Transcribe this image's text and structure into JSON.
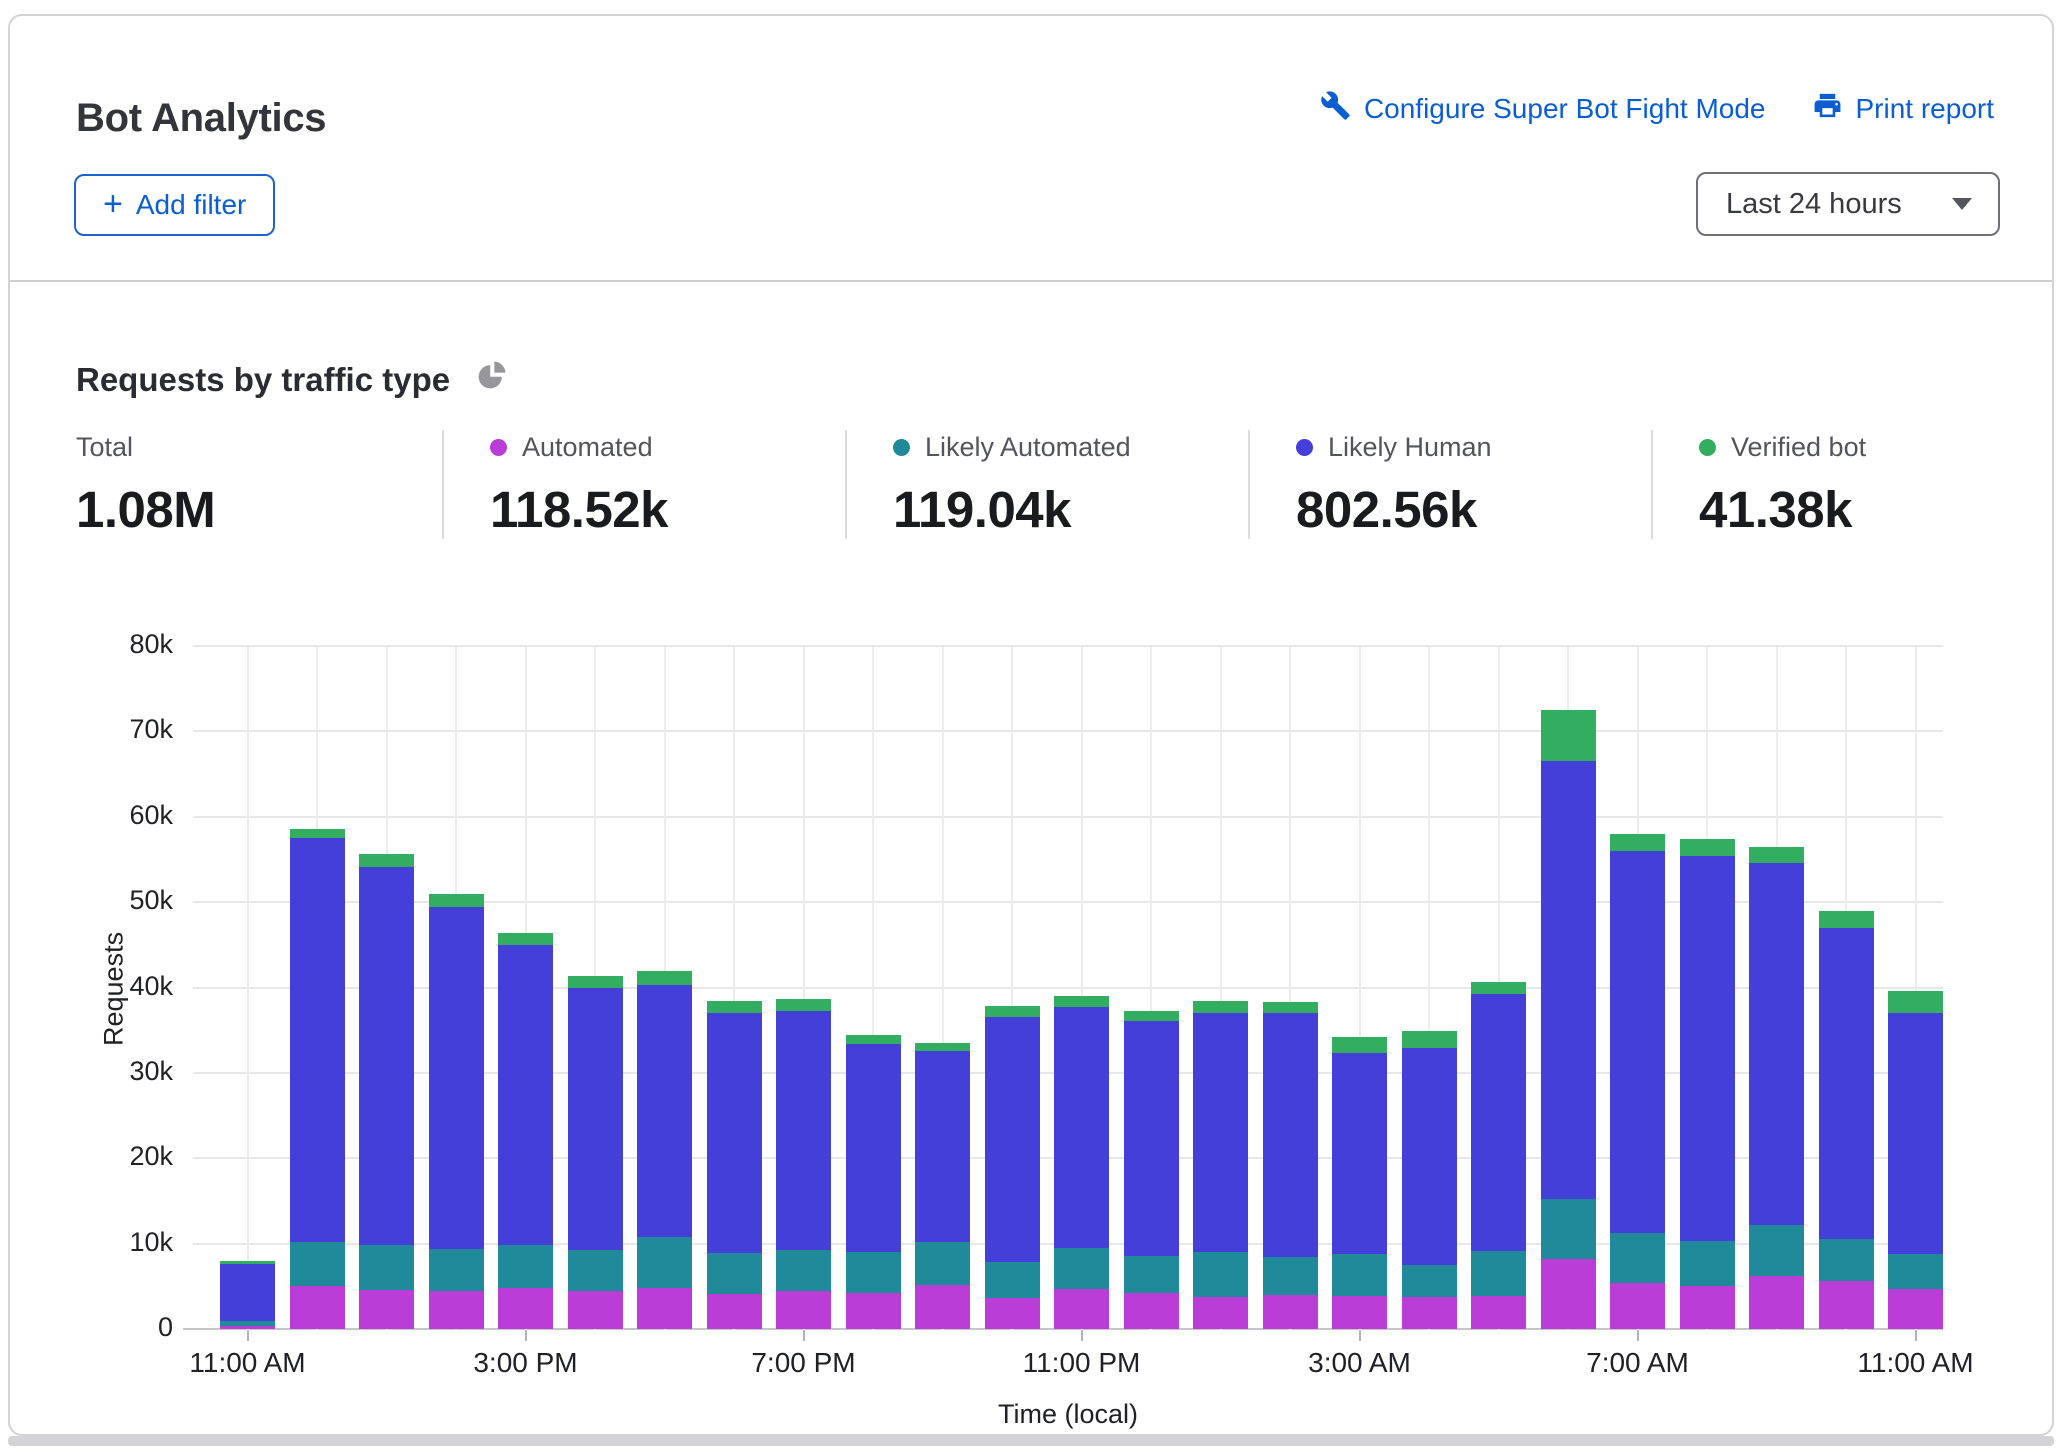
{
  "header": {
    "title": "Bot Analytics",
    "links": [
      {
        "label": "Configure Super Bot Fight Mode",
        "icon": "wrench-icon"
      },
      {
        "label": "Print report",
        "icon": "printer-icon"
      }
    ],
    "add_filter_label": "Add filter",
    "time_range": "Last 24 hours"
  },
  "section": {
    "title": "Requests by traffic type",
    "icon": "pie-chart-icon"
  },
  "stats": [
    {
      "label": "Total",
      "value": "1.08M",
      "color": null
    },
    {
      "label": "Automated",
      "value": "118.52k",
      "color": "#ba3dd8"
    },
    {
      "label": "Likely Automated",
      "value": "119.04k",
      "color": "#20899a"
    },
    {
      "label": "Likely Human",
      "value": "802.56k",
      "color": "#433fd8"
    },
    {
      "label": "Verified bot",
      "value": "41.38k",
      "color": "#33ad5f"
    }
  ],
  "chart_data": {
    "type": "bar",
    "stacked": true,
    "title": "Requests by traffic type",
    "xlabel": "Time (local)",
    "ylabel": "Requests",
    "ylim": [
      0,
      80000
    ],
    "y_tick_labels": [
      "0",
      "10k",
      "20k",
      "30k",
      "40k",
      "50k",
      "60k",
      "70k",
      "80k"
    ],
    "values_unit": "thousands of requests (k)",
    "grid": true,
    "legend_position": "top-stats-row",
    "categories": [
      "11:00 AM",
      "12:00 PM",
      "1:00 PM",
      "2:00 PM",
      "3:00 PM",
      "4:00 PM",
      "5:00 PM",
      "6:00 PM",
      "7:00 PM",
      "8:00 PM",
      "9:00 PM",
      "10:00 PM",
      "11:00 PM",
      "12:00 AM",
      "1:00 AM",
      "2:00 AM",
      "3:00 AM",
      "4:00 AM",
      "5:00 AM",
      "6:00 AM",
      "7:00 AM",
      "8:00 AM",
      "9:00 AM",
      "10:00 AM",
      "11:00 AM"
    ],
    "x_tick_indices": [
      0,
      4,
      8,
      12,
      16,
      20,
      24
    ],
    "x_tick_labels": [
      "11:00 AM",
      "3:00 PM",
      "7:00 PM",
      "11:00 PM",
      "3:00 AM",
      "7:00 AM",
      "11:00 AM"
    ],
    "series": [
      {
        "name": "Automated",
        "color": "#ba3dd8",
        "values": [
          0.4,
          5.1,
          4.6,
          4.5,
          4.8,
          4.4,
          4.8,
          4.1,
          4.5,
          4.2,
          5.2,
          3.6,
          4.7,
          4.2,
          3.7,
          4.0,
          3.9,
          3.7,
          3.9,
          8.2,
          5.4,
          5.0,
          6.2,
          5.6,
          4.7
        ]
      },
      {
        "name": "Likely Automated",
        "color": "#20899a",
        "values": [
          0.6,
          5.1,
          5.2,
          4.9,
          5.0,
          4.9,
          6.0,
          4.8,
          4.8,
          4.8,
          5.0,
          4.3,
          4.8,
          4.4,
          5.3,
          4.4,
          4.9,
          3.8,
          5.3,
          7.0,
          5.9,
          5.3,
          6.0,
          4.9,
          4.1
        ]
      },
      {
        "name": "Likely Human",
        "color": "#433fd8",
        "values": [
          6.6,
          47.3,
          44.3,
          40.0,
          35.2,
          30.7,
          29.5,
          28.1,
          28.0,
          24.4,
          22.4,
          28.7,
          28.2,
          27.5,
          28.0,
          28.6,
          23.5,
          25.4,
          30.1,
          51.3,
          44.7,
          45.1,
          42.4,
          36.5,
          28.2
        ]
      },
      {
        "name": "Verified bot",
        "color": "#33ad5f",
        "values": [
          0.4,
          1.1,
          1.5,
          1.6,
          1.4,
          1.4,
          1.6,
          1.4,
          1.4,
          1.0,
          0.9,
          1.3,
          1.3,
          1.2,
          1.4,
          1.3,
          1.9,
          2.0,
          1.4,
          6.0,
          2.0,
          2.0,
          1.9,
          2.0,
          2.6
        ]
      }
    ]
  }
}
